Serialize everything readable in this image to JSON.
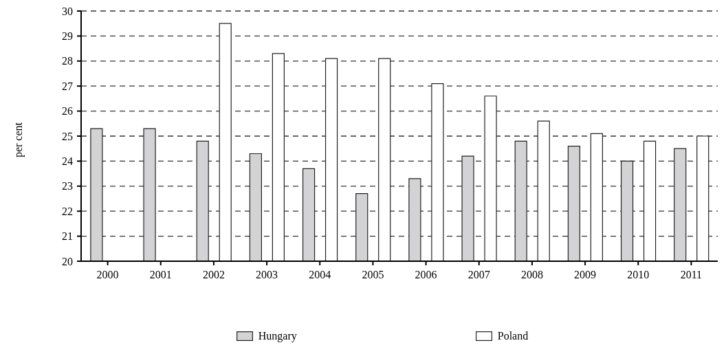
{
  "chart_data": {
    "type": "bar",
    "ylabel": "per cent",
    "categories": [
      "2000",
      "2001",
      "2002",
      "2003",
      "2004",
      "2005",
      "2006",
      "2007",
      "2008",
      "2009",
      "2010",
      "2011"
    ],
    "series": [
      {
        "name": "Hungary",
        "color": "#d3d3d5",
        "values": [
          25.3,
          25.3,
          24.8,
          24.3,
          23.7,
          22.7,
          23.3,
          24.2,
          24.8,
          24.6,
          24.0,
          24.5
        ]
      },
      {
        "name": "Poland",
        "color": "#ffffff",
        "values": [
          null,
          null,
          29.5,
          28.3,
          28.1,
          28.1,
          27.1,
          26.6,
          25.6,
          25.1,
          24.8,
          25.0
        ]
      }
    ],
    "ylim": [
      20,
      30
    ],
    "yticks": [
      20,
      21,
      22,
      23,
      24,
      25,
      26,
      27,
      28,
      29,
      30
    ],
    "grid": "y",
    "legend": "bottom"
  }
}
